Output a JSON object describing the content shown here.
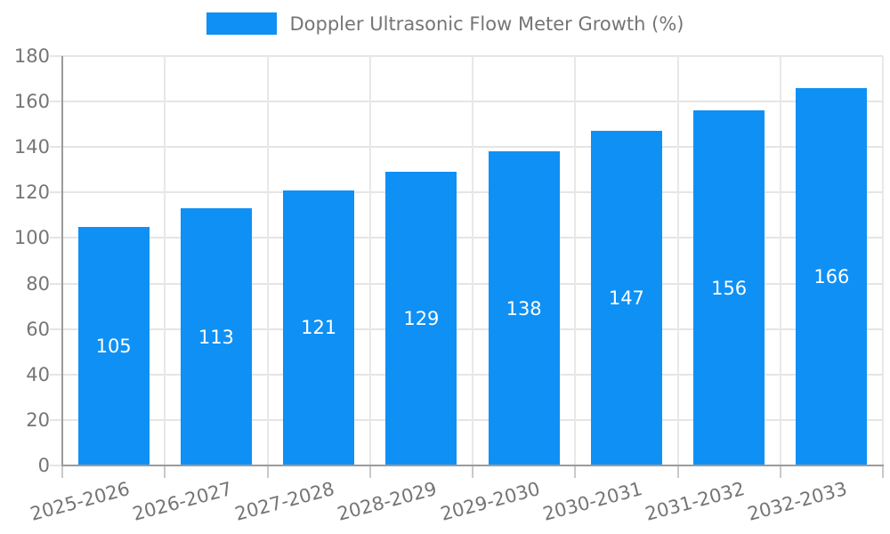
{
  "legend": {
    "label": "Doppler Ultrasonic Flow Meter Growth (%)"
  },
  "colors": {
    "bar": "#0f90f5",
    "grid": "#e5e5e5",
    "spine": "#9b9b9b",
    "tick_text": "#757575",
    "value_label": "#ffffff"
  },
  "chart_data": {
    "type": "bar",
    "title": "",
    "xlabel": "",
    "ylabel": "",
    "categories": [
      "2025-2026",
      "2026-2027",
      "2027-2028",
      "2028-2029",
      "2029-2030",
      "2030-2031",
      "2031-2032",
      "2032-2033"
    ],
    "series": [
      {
        "name": "Doppler Ultrasonic Flow Meter Growth (%)",
        "values": [
          105,
          113,
          121,
          129,
          138,
          147,
          156,
          166
        ]
      }
    ],
    "value_labels_shown": true,
    "ylim": [
      0,
      180
    ],
    "ytick_step": 20,
    "yticks": [
      0,
      20,
      40,
      60,
      80,
      100,
      120,
      140,
      160,
      180
    ],
    "grid": true,
    "legend_position": "top-center",
    "x_tick_rotation_deg": -15,
    "bar_color": "#0f90f5"
  }
}
